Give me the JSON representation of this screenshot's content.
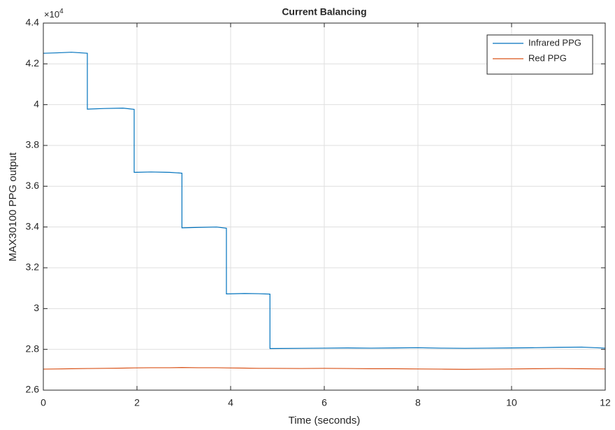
{
  "chart_data": {
    "type": "line",
    "title": "Current Balancing",
    "xlabel": "Time (seconds)",
    "ylabel": "MAX30100 PPG output",
    "y_exponent": {
      "base": "×10",
      "power": "4"
    },
    "x": [
      0,
      0.3,
      0.6,
      0.94,
      0.94,
      1.3,
      1.7,
      1.94,
      1.94,
      2.3,
      2.7,
      2.96,
      2.96,
      3.3,
      3.7,
      3.91,
      3.91,
      4.3,
      4.6,
      4.84,
      4.84,
      5.5,
      6,
      6.5,
      7,
      7.5,
      8,
      8.5,
      9,
      9.5,
      10,
      10.5,
      11,
      11.5,
      12
    ],
    "series": [
      {
        "name": "Infrared PPG",
        "color": "#0072bd",
        "values": [
          4.252,
          4.254,
          4.257,
          4.252,
          3.978,
          3.981,
          3.983,
          3.977,
          3.668,
          3.67,
          3.668,
          3.664,
          3.396,
          3.398,
          3.4,
          3.394,
          3.072,
          3.074,
          3.073,
          3.071,
          2.804,
          2.805,
          2.806,
          2.807,
          2.806,
          2.807,
          2.808,
          2.806,
          2.805,
          2.806,
          2.807,
          2.808,
          2.81,
          2.811,
          2.806
        ]
      },
      {
        "name": "Red PPG",
        "color": "#d95319",
        "values": [
          2.703,
          2.704,
          2.705,
          2.706,
          2.706,
          2.707,
          2.708,
          2.709,
          2.709,
          2.71,
          2.71,
          2.711,
          2.711,
          2.71,
          2.71,
          2.709,
          2.709,
          2.708,
          2.707,
          2.707,
          2.707,
          2.706,
          2.707,
          2.706,
          2.705,
          2.705,
          2.704,
          2.703,
          2.702,
          2.703,
          2.704,
          2.705,
          2.706,
          2.705,
          2.704
        ]
      }
    ],
    "xlim": [
      0,
      12
    ],
    "xticks": [
      0,
      2,
      4,
      6,
      8,
      10,
      12
    ],
    "ylim": [
      2.6,
      4.4
    ],
    "yticks": [
      2.6,
      2.8,
      3,
      3.2,
      3.4,
      3.6,
      3.8,
      4,
      4.2,
      4.4
    ],
    "grid": true,
    "legend": "northeast"
  }
}
